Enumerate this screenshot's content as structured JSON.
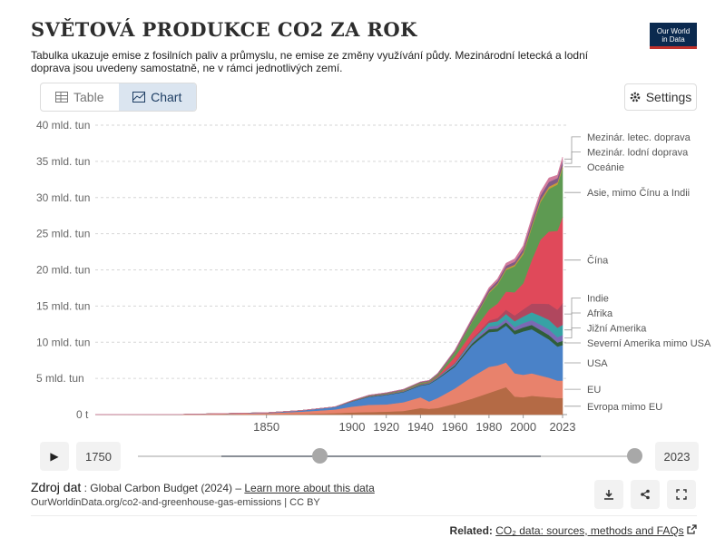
{
  "header": {
    "title": "SVĚTOVÁ PRODUKCE CO2 ZA ROK",
    "subtitle": "Tabulka ukazuje emise z fosilních paliv a průmyslu, ne emise ze změny využívání půdy. Mezinárodní letecká a lodní doprava jsou uvedeny samostatně, ne v rámci jednotlivých zemí.",
    "logo_line1": "Our World",
    "logo_line2": "in Data"
  },
  "tabs": [
    {
      "label": "Table"
    },
    {
      "label": "Chart"
    }
  ],
  "active_tab": "Chart",
  "settings_label": "Settings",
  "chart_data": {
    "type": "area",
    "title": "SVĚTOVÁ PRODUKCE CO2 ZA ROK",
    "unit": "mld. tun",
    "ylim": [
      0,
      40
    ],
    "xlim": [
      1750,
      2023
    ],
    "y_ticks": [
      {
        "value": 0,
        "label": "0 t"
      },
      {
        "value": 5,
        "label": "5 mld. tun"
      },
      {
        "value": 10,
        "label": "10 mld. tun"
      },
      {
        "value": 15,
        "label": "15 mld. tun"
      },
      {
        "value": 20,
        "label": "20 mld. tun"
      },
      {
        "value": 25,
        "label": "25 mld. tun"
      },
      {
        "value": 30,
        "label": "30 mld. tun"
      },
      {
        "value": 35,
        "label": "35 mld. tun"
      },
      {
        "value": 40,
        "label": "40 mld. tun"
      }
    ],
    "x_ticks": [
      1850,
      1900,
      1920,
      1940,
      1960,
      1980,
      2000,
      2023
    ],
    "x": [
      1750,
      1800,
      1850,
      1870,
      1890,
      1900,
      1910,
      1920,
      1930,
      1940,
      1945,
      1950,
      1960,
      1970,
      1975,
      1980,
      1985,
      1990,
      1995,
      2000,
      2005,
      2010,
      2015,
      2020,
      2023
    ],
    "series": [
      {
        "name": "Evropa mimo EU",
        "color": "#b46a45",
        "values": [
          0.0,
          0.0,
          0.05,
          0.1,
          0.2,
          0.3,
          0.35,
          0.4,
          0.5,
          0.9,
          0.8,
          0.9,
          1.5,
          2.2,
          2.6,
          3.0,
          3.4,
          3.8,
          2.5,
          2.4,
          2.6,
          2.5,
          2.4,
          2.3,
          2.3
        ]
      },
      {
        "name": "EU",
        "color": "#e8826c",
        "values": [
          0.01,
          0.02,
          0.15,
          0.3,
          0.5,
          0.8,
          1.0,
          1.0,
          1.2,
          1.5,
          1.0,
          1.4,
          2.1,
          3.0,
          3.3,
          3.6,
          3.4,
          3.4,
          3.2,
          3.1,
          3.1,
          2.9,
          2.7,
          2.4,
          2.4
        ]
      },
      {
        "name": "USA",
        "color": "#4a82c8",
        "values": [
          0.0,
          0.0,
          0.05,
          0.15,
          0.35,
          0.7,
          1.1,
          1.3,
          1.4,
          1.6,
          2.4,
          2.6,
          3.0,
          4.3,
          4.6,
          4.8,
          4.7,
          5.1,
          5.4,
          6.0,
          6.1,
          5.7,
          5.3,
          4.7,
          4.9
        ]
      },
      {
        "name": "Severní Amerika mimo USA",
        "color": "#2f5e3a",
        "values": [
          0.0,
          0.0,
          0.01,
          0.01,
          0.02,
          0.03,
          0.05,
          0.05,
          0.06,
          0.07,
          0.08,
          0.1,
          0.2,
          0.3,
          0.35,
          0.4,
          0.4,
          0.45,
          0.5,
          0.55,
          0.6,
          0.6,
          0.6,
          0.55,
          0.6
        ]
      },
      {
        "name": "Jižní Amerika",
        "color": "#7a6ab5",
        "values": [
          0.0,
          0.0,
          0.0,
          0.0,
          0.0,
          0.01,
          0.01,
          0.02,
          0.03,
          0.04,
          0.05,
          0.08,
          0.15,
          0.25,
          0.3,
          0.4,
          0.4,
          0.45,
          0.5,
          0.6,
          0.65,
          0.75,
          0.8,
          0.75,
          0.8
        ]
      },
      {
        "name": "Afrika",
        "color": "#37a2a5",
        "values": [
          0.0,
          0.0,
          0.0,
          0.0,
          0.0,
          0.01,
          0.01,
          0.02,
          0.03,
          0.04,
          0.05,
          0.06,
          0.1,
          0.2,
          0.3,
          0.5,
          0.6,
          0.7,
          0.8,
          0.9,
          1.1,
          1.2,
          1.3,
          1.3,
          1.4
        ]
      },
      {
        "name": "Indie",
        "color": "#b0475e",
        "values": [
          0.0,
          0.0,
          0.0,
          0.0,
          0.0,
          0.01,
          0.02,
          0.03,
          0.03,
          0.04,
          0.05,
          0.07,
          0.12,
          0.2,
          0.25,
          0.3,
          0.45,
          0.6,
          0.8,
          1.0,
          1.2,
          1.7,
          2.2,
          2.5,
          3.0
        ]
      },
      {
        "name": "Čína",
        "color": "#e0495a",
        "values": [
          0.0,
          0.0,
          0.0,
          0.0,
          0.0,
          0.01,
          0.02,
          0.03,
          0.03,
          0.04,
          0.05,
          0.08,
          0.8,
          0.9,
          1.2,
          1.5,
          2.0,
          2.5,
          3.2,
          3.6,
          6.0,
          8.8,
          10.0,
          10.9,
          11.9
        ]
      },
      {
        "name": "Asie, mimo Čínu a Indii",
        "color": "#5e9a52",
        "values": [
          0.0,
          0.0,
          0.0,
          0.0,
          0.01,
          0.03,
          0.05,
          0.07,
          0.1,
          0.15,
          0.1,
          0.2,
          0.6,
          1.4,
          1.8,
          2.3,
          2.6,
          3.0,
          3.6,
          4.0,
          4.5,
          5.2,
          5.9,
          6.4,
          6.8
        ]
      },
      {
        "name": "Oceánie",
        "color": "#c79a3a",
        "values": [
          0.0,
          0.0,
          0.0,
          0.0,
          0.0,
          0.01,
          0.01,
          0.02,
          0.02,
          0.03,
          0.03,
          0.04,
          0.06,
          0.1,
          0.12,
          0.15,
          0.17,
          0.2,
          0.23,
          0.28,
          0.3,
          0.31,
          0.31,
          0.3,
          0.3
        ]
      },
      {
        "name": "Mezinár. lodní doprava",
        "color": "#7f5a86",
        "values": [
          0.0,
          0.0,
          0.0,
          0.0,
          0.0,
          0.05,
          0.07,
          0.08,
          0.1,
          0.12,
          0.12,
          0.15,
          0.2,
          0.3,
          0.35,
          0.35,
          0.35,
          0.38,
          0.4,
          0.45,
          0.55,
          0.6,
          0.65,
          0.6,
          0.65
        ]
      },
      {
        "name": "Mezinár. letec. doprava",
        "color": "#d27a9b",
        "values": [
          0.0,
          0.0,
          0.0,
          0.0,
          0.0,
          0.0,
          0.0,
          0.0,
          0.0,
          0.0,
          0.0,
          0.02,
          0.1,
          0.15,
          0.2,
          0.25,
          0.3,
          0.35,
          0.4,
          0.45,
          0.5,
          0.5,
          0.55,
          0.4,
          0.55
        ]
      }
    ]
  },
  "timeline": {
    "start_year": "1750",
    "end_year": "2023",
    "play_icon": "play-icon"
  },
  "source": {
    "label": "Zdroj dat",
    "text": ": Global Carbon Budget (2024) – ",
    "link": "Learn more about this data",
    "url": "OurWorldinData.org/co2-and-greenhouse-gas-emissions | CC BY"
  },
  "related": {
    "label": "Related:",
    "link": "CO₂ data: sources, methods and FAQs"
  }
}
